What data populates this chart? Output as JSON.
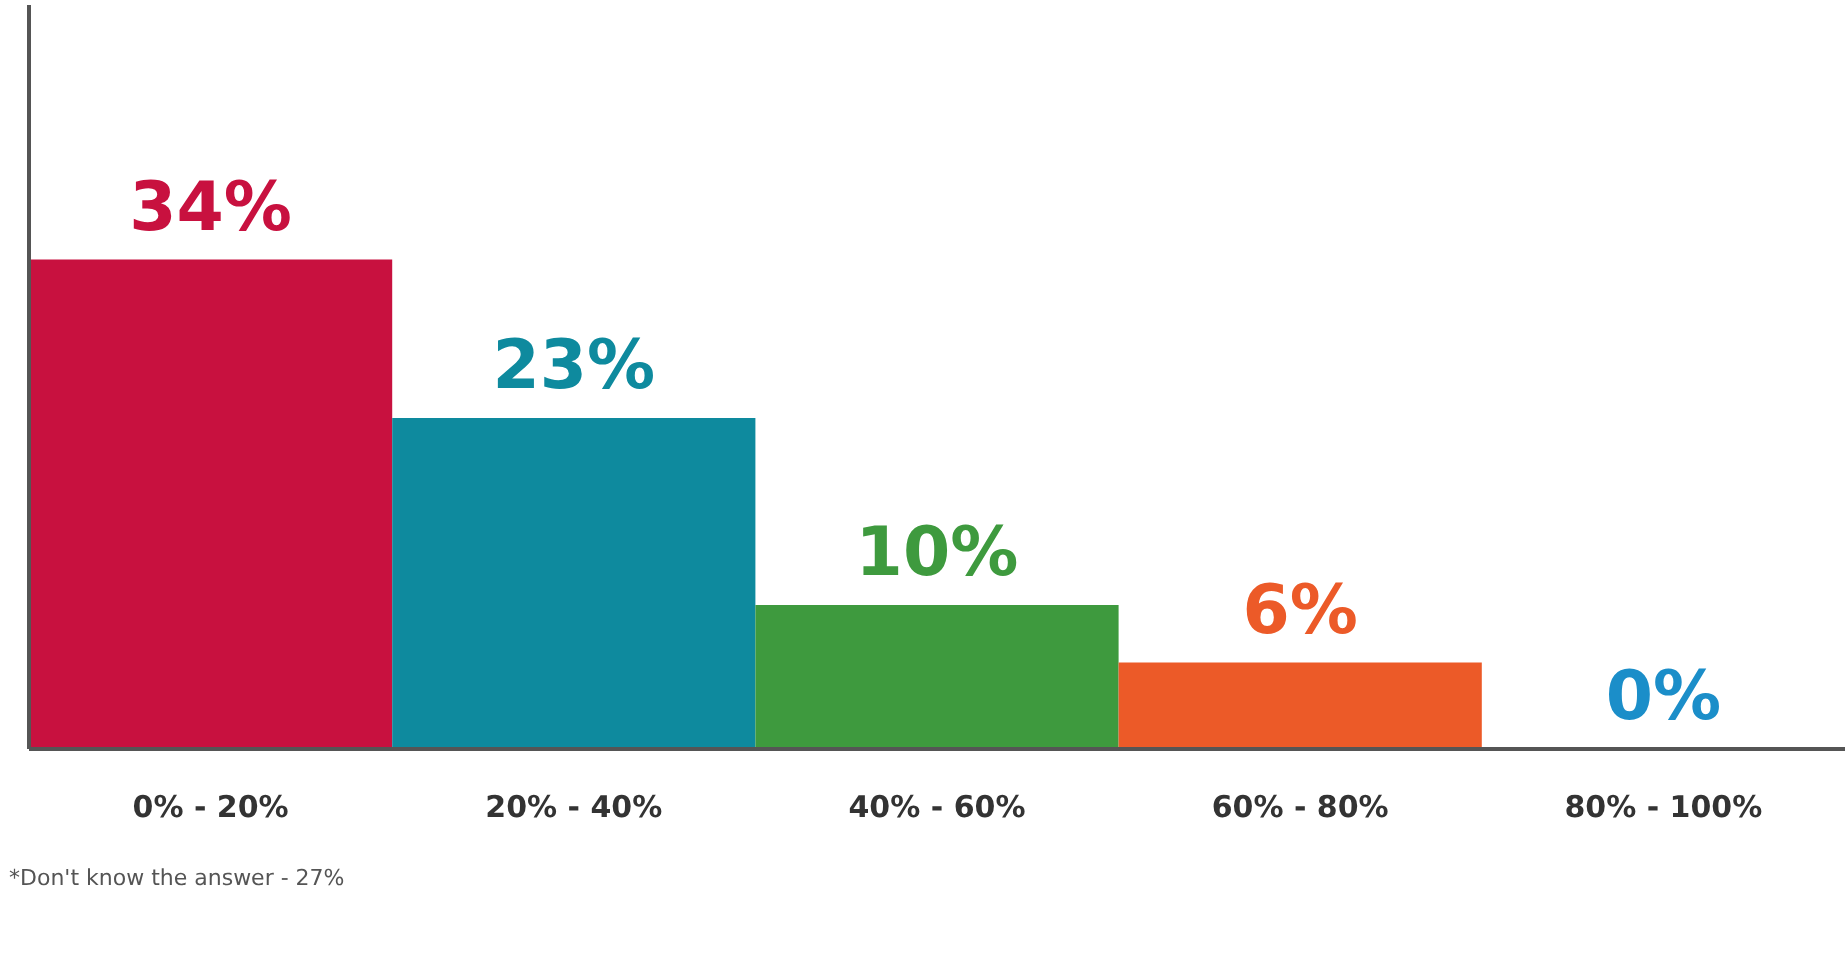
{
  "chart_data": {
    "type": "bar",
    "categories": [
      "0% - 20%",
      "20% - 40%",
      "40% - 60%",
      "60% - 80%",
      "80% - 100%"
    ],
    "values": [
      34,
      23,
      10,
      6,
      0
    ],
    "colors": [
      "#c8113f",
      "#0e8a9e",
      "#3e9a3e",
      "#ec5a28",
      "#1b8ec9"
    ],
    "value_labels": [
      "34%",
      "23%",
      "10%",
      "6%",
      "0%"
    ],
    "annotations": [
      "*Don't know the answer - 27%"
    ],
    "grid": false
  }
}
